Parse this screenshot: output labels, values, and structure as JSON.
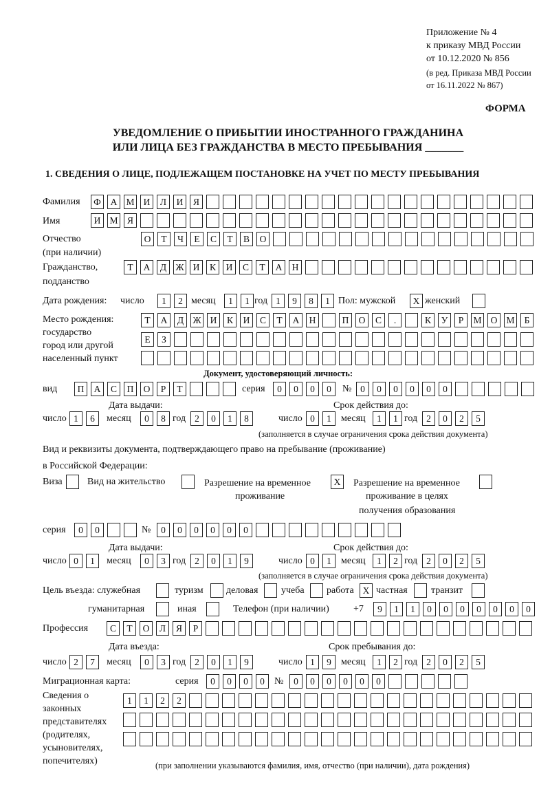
{
  "header": {
    "appendix": [
      "Приложение № 4",
      "к приказу МВД России",
      "от 10.12.2020 № 856"
    ],
    "edition": [
      "(в ред. Приказа МВД России",
      "от 16.11.2022 № 867)"
    ],
    "form_label": "ФОРМА",
    "title_line1": "УВЕДОМЛЕНИЕ О ПРИБЫТИИ ИНОСТРАННОГО ГРАЖДАНИНА",
    "title_line2": "ИЛИ ЛИЦА БЕЗ ГРАЖДАНСТВА В МЕСТО ПРЕБЫВАНИЯ _______",
    "section1": "1. СВЕДЕНИЯ О ЛИЦЕ, ПОДЛЕЖАЩЕМ ПОСТАНОВКЕ НА УЧЕТ ПО МЕСТУ ПРЕБЫВАНИЯ"
  },
  "labels": {
    "surname": "Фамилия",
    "name": "Имя",
    "patronymic": "Отчество",
    "patronymic2": "(при наличии)",
    "citizenship": "Гражданство,",
    "citizenship2": "подданство",
    "birth_date": "Дата рождения:",
    "day": "число",
    "month": "месяц",
    "year": "год",
    "sex": "Пол: мужской",
    "female": "женский",
    "birthplace": "Место рождения:",
    "birthplace2": "государство",
    "birthplace3": "город или другой",
    "birthplace4": "населенный пункт",
    "id_doc": "Документ, удостоверяющий личность:",
    "kind": "вид",
    "series": "серия",
    "number": "№",
    "issue_date": "Дата выдачи:",
    "valid_until": "Срок действия до:",
    "validity_note": "(заполняется в случае ограничения срока действия документа)",
    "stay_doc": "Вид и реквизиты документа, подтверждающего право на пребывание (проживание)",
    "stay_doc2": "в Российской Федерации:",
    "visa": "Виза",
    "residence": "Вид на жительство",
    "temp_res": "Разрешение на временное",
    "temp_res2": "проживание",
    "temp_edu": "Разрешение на временное",
    "temp_edu2": "проживание в целях",
    "temp_edu3": "получения образования",
    "purpose": "Цель въезда: служебная",
    "tourism": "туризм",
    "business": "деловая",
    "study": "учеба",
    "work": "работа",
    "private": "частная",
    "transit": "транзит",
    "humanitarian": "гуманитарная",
    "other": "иная",
    "phone": "Телефон (при наличии)",
    "phone_prefix": "+7",
    "profession": "Профессия",
    "entry_date": "Дата въезда:",
    "stay_until": "Срок пребывания до:",
    "migration_card": "Миграционная карта:",
    "reps": [
      "Сведения о",
      "законных",
      "представителях",
      "(родителях,",
      "усыновителях,",
      "попечителях)"
    ],
    "reps_note": "(при заполнении указываются фамилия, имя, отчество (при наличии), дата рождения)"
  },
  "fields": {
    "surname": "ФАМИЛИЯ",
    "name": "ИМЯ",
    "patronymic": "ОТЧЕСТВО",
    "citizenship": "ТАДЖИКИСТАН",
    "birth_day": "12",
    "birth_month": "11",
    "birth_year": "1981",
    "sex_male": "X",
    "sex_female": "",
    "birthplace1": "ТАДЖИКИСТАН ПОС. КУРМОМБ",
    "birthplace2": "ЕЗ",
    "birthplace3": "",
    "doc_kind": "ПАСПОРТ",
    "doc_series": "0000",
    "doc_number": "000000",
    "doc_issue_day": "16",
    "doc_issue_month": "08",
    "doc_issue_year": "2018",
    "doc_valid_day": "01",
    "doc_valid_month": "11",
    "doc_valid_year": "2025",
    "visa": "",
    "residence": "",
    "temp_res": "X",
    "temp_edu": "",
    "permit_series": "00",
    "permit_number": "000000",
    "permit_issue_day": "01",
    "permit_issue_month": "03",
    "permit_issue_year": "2019",
    "permit_valid_day": "01",
    "permit_valid_month": "12",
    "permit_valid_year": "2025",
    "purpose_official": "",
    "purpose_tourism": "",
    "purpose_business": "",
    "purpose_study": "",
    "purpose_work": "X",
    "purpose_private": "",
    "purpose_transit": "",
    "purpose_humanitarian": "",
    "purpose_other": "",
    "phone": "9110000000",
    "profession": "СТОЛЯР",
    "entry_day": "27",
    "entry_month": "03",
    "entry_year": "2019",
    "stay_day": "19",
    "stay_month": "12",
    "stay_year": "2025",
    "mig_series": "0000",
    "mig_number": "000000",
    "reps1": "1122",
    "reps2": "",
    "reps3": ""
  }
}
